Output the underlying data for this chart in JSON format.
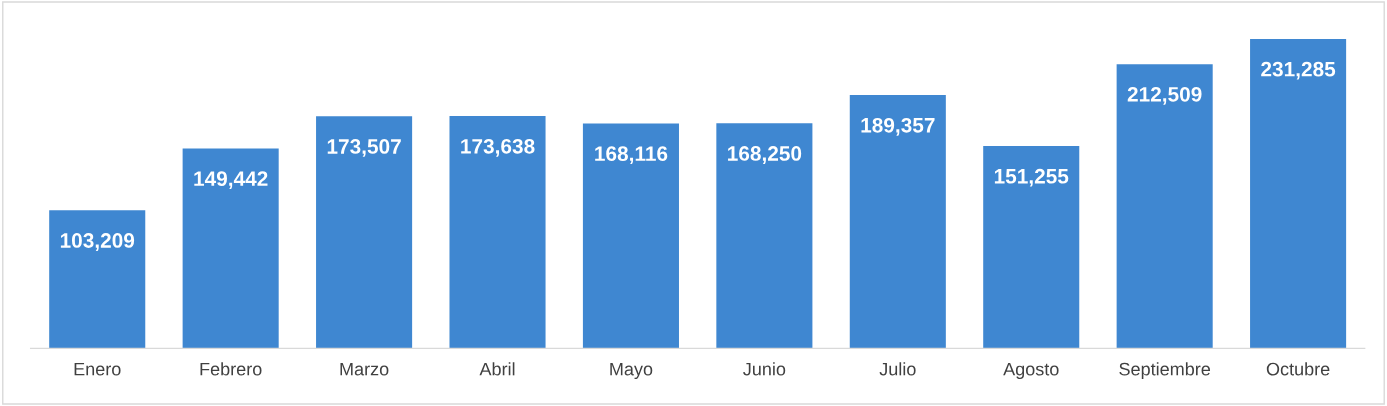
{
  "chart_data": {
    "type": "bar",
    "categories": [
      "Enero",
      "Febrero",
      "Marzo",
      "Abril",
      "Mayo",
      "Junio",
      "Julio",
      "Agosto",
      "Septiembre",
      "Octubre"
    ],
    "values": [
      103209,
      149442,
      173507,
      173638,
      168116,
      168250,
      189357,
      151255,
      212509,
      231285
    ],
    "value_labels": [
      "103,209",
      "149,442",
      "173,507",
      "173,638",
      "168,116",
      "168,250",
      "189,357",
      "151,255",
      "212,509",
      "231,285"
    ],
    "color": "#3f87d1",
    "tick_labels": "x",
    "grid": false,
    "legend": false
  }
}
